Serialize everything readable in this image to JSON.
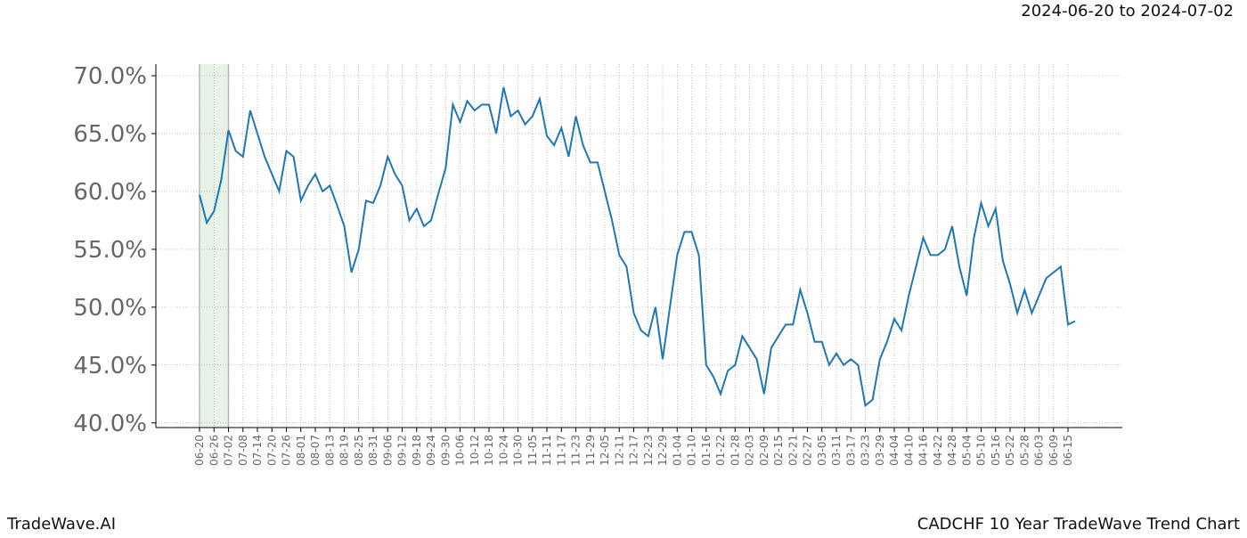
{
  "header": "2024-06-20 to 2024-07-02",
  "footer_left": "TradeWave.AI",
  "footer_right": "CADCHF 10 Year TradeWave Trend Chart",
  "chart_data": {
    "type": "line",
    "categories": [
      "06-20",
      null,
      "06-26",
      null,
      "07-02",
      null,
      "07-08",
      null,
      "07-14",
      null,
      "07-20",
      null,
      "07-26",
      null,
      "08-01",
      null,
      "08-07",
      null,
      "08-13",
      null,
      "08-19",
      null,
      "08-25",
      null,
      "08-31",
      null,
      "09-06",
      null,
      "09-12",
      null,
      "09-18",
      null,
      "09-24",
      null,
      "09-30",
      null,
      "10-06",
      null,
      "10-12",
      null,
      "10-18",
      null,
      "10-24",
      null,
      "10-30",
      null,
      "11-05",
      null,
      "11-11",
      null,
      "11-17",
      null,
      "11-23",
      null,
      "11-29",
      null,
      "12-05",
      null,
      "12-11",
      null,
      "12-17",
      null,
      "12-23",
      null,
      "12-29",
      null,
      "01-04",
      null,
      "01-10",
      null,
      "01-16",
      null,
      "01-22",
      null,
      "01-28",
      null,
      "02-03",
      null,
      "02-09",
      null,
      "02-15",
      null,
      "02-21",
      null,
      "02-27",
      null,
      "03-05",
      null,
      "03-11",
      null,
      "03-17",
      null,
      "03-23",
      null,
      "03-29",
      null,
      "04-04",
      null,
      "04-10",
      null,
      "04-16",
      null,
      "04-22",
      null,
      "04-28",
      null,
      "05-04",
      null,
      "05-10",
      null,
      "05-16",
      null,
      "05-22",
      null,
      "05-28",
      null,
      "06-03",
      null,
      "06-09",
      null,
      "06-15",
      null
    ],
    "series": [
      {
        "color": "#1f77b4",
        "values": [
          59.7,
          57.3,
          58.3,
          61,
          65.3,
          63.5,
          63,
          67,
          65,
          63,
          61.5,
          60,
          63.5,
          63,
          59.2,
          60.5,
          61.5,
          60,
          60.5,
          58.8,
          57,
          53,
          55,
          59.2,
          59,
          60.5,
          63,
          61.5,
          60.5,
          57.5,
          58.5,
          57,
          57.5,
          59.8,
          62,
          67.5,
          66,
          67.8,
          67,
          67.5,
          67.5,
          65,
          69,
          66.5,
          67,
          65.8,
          66.5,
          68,
          64.8,
          64,
          65.5,
          63,
          66.5,
          64,
          62.5,
          62.5,
          60,
          57.5,
          54.5,
          53.5,
          49.5,
          48,
          47.5,
          50,
          45.5,
          50,
          54.5,
          56.5,
          56.5,
          54.5,
          45,
          44,
          42.5,
          44.5,
          45,
          47.5,
          46.5,
          45.5,
          42.5,
          46.5,
          47.5,
          48.5,
          48.5,
          51.5,
          49.5,
          47,
          47,
          45,
          46,
          45,
          45.5,
          45,
          41.5,
          42,
          45.5,
          47,
          49,
          48,
          51,
          53.5,
          56,
          54.5,
          54.5,
          55,
          57,
          53.5,
          51,
          56,
          59,
          57,
          58.5,
          54,
          52,
          49.5,
          51.5,
          49.5,
          51,
          52.5,
          53,
          53.5,
          48.5,
          48.8
        ]
      }
    ],
    "ylim": [
      39.6,
      71.0
    ],
    "yticks": [
      {
        "value": 40,
        "label": "40.0%"
      },
      {
        "value": 45,
        "label": "45.0%"
      },
      {
        "value": 50,
        "label": "50.0%"
      },
      {
        "value": 55,
        "label": "55.0%"
      },
      {
        "value": 60,
        "label": "60.0%"
      },
      {
        "value": 65,
        "label": "65.0%"
      },
      {
        "value": 70,
        "label": "70.0%"
      }
    ],
    "grid": true,
    "highlight": [
      "06-20",
      "07-02"
    ],
    "highlight_color": "#e6f2e6"
  }
}
